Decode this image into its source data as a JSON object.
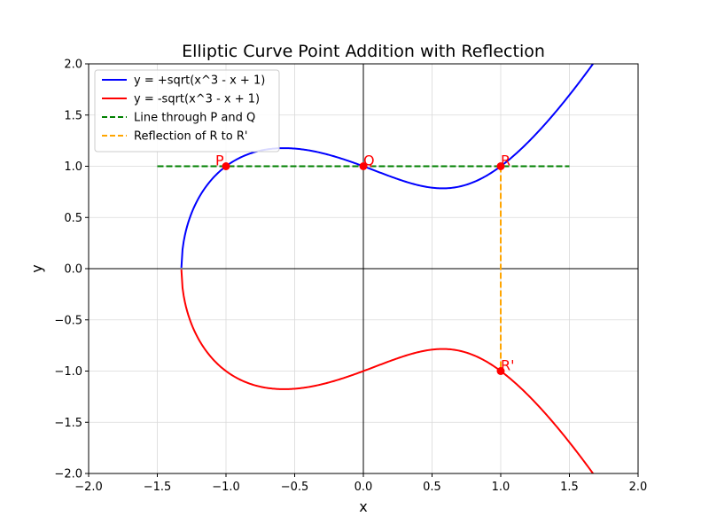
{
  "chart_data": {
    "type": "line",
    "title": "Elliptic Curve Point Addition with Reflection",
    "xlabel": "x",
    "ylabel": "y",
    "xlim": [
      -2.0,
      2.0
    ],
    "ylim": [
      -2.0,
      2.0
    ],
    "xticks": [
      -2.0,
      -1.5,
      -1.0,
      -0.5,
      0.0,
      0.5,
      1.0,
      1.5,
      2.0
    ],
    "yticks": [
      -2.0,
      -1.5,
      -1.0,
      -0.5,
      0.0,
      0.5,
      1.0,
      1.5,
      2.0
    ],
    "xtick_labels": [
      "−2.0",
      "−1.5",
      "−1.0",
      "−0.5",
      "0.0",
      "0.5",
      "1.0",
      "1.5",
      "2.0"
    ],
    "ytick_labels": [
      "−2.0",
      "−1.5",
      "−1.0",
      "−0.5",
      "0.0",
      "0.5",
      "1.0",
      "1.5",
      "2.0"
    ],
    "grid": true,
    "legend_position": "top-left",
    "curve": {
      "a": -1,
      "b": 1,
      "x_start": -1.3247,
      "x_end": 2.0
    },
    "series": [
      {
        "name": "y = +sqrt(x^3 - x + 1)",
        "kind": "curve",
        "sign": 1,
        "color": "#0000ff",
        "style": "solid"
      },
      {
        "name": "y = -sqrt(x^3 - x + 1)",
        "kind": "curve",
        "sign": -1,
        "color": "#ff0000",
        "style": "solid"
      },
      {
        "name": "Line through P and Q",
        "kind": "segment",
        "x": [
          -1.5,
          1.5
        ],
        "y": [
          1.0,
          1.0
        ],
        "color": "#008000",
        "style": "dashed"
      },
      {
        "name": "Reflection of R to R'",
        "kind": "segment",
        "x": [
          1.0,
          1.0
        ],
        "y": [
          1.0,
          -1.0
        ],
        "color": "#ffa500",
        "style": "dashed"
      }
    ],
    "points": [
      {
        "label": "P",
        "x": -1.0,
        "y": 1.0
      },
      {
        "label": "Q",
        "x": 0.0,
        "y": 1.0
      },
      {
        "label": "R",
        "x": 1.0,
        "y": 1.0
      },
      {
        "label": "R'",
        "x": 1.0,
        "y": -1.0
      }
    ],
    "point_color": "#ff0000",
    "zero_lines": true
  }
}
